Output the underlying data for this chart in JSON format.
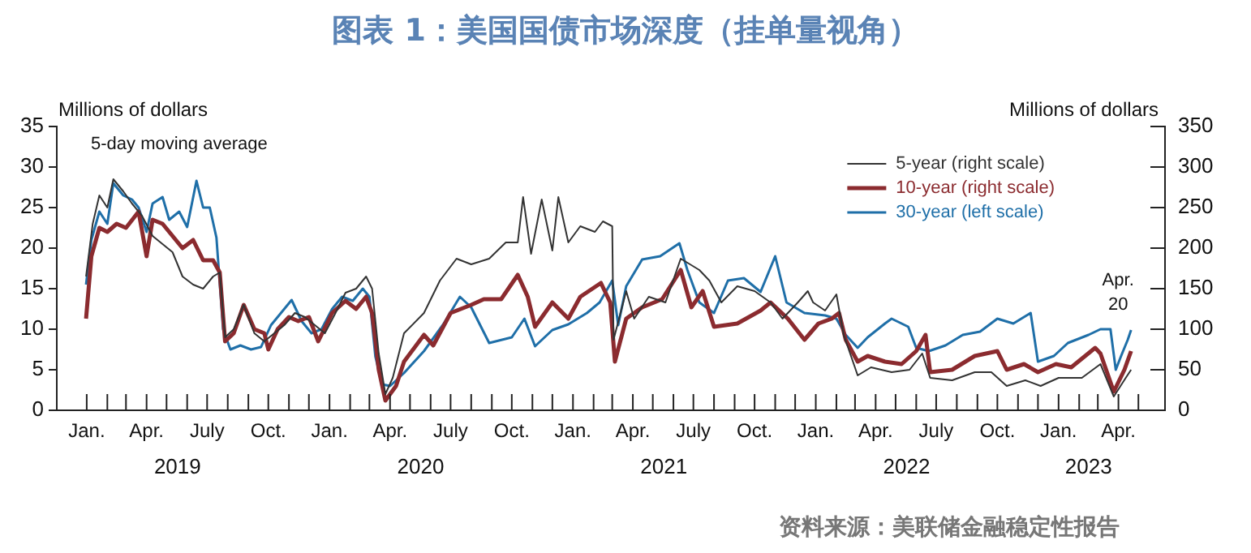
{
  "chart_data": {
    "type": "line",
    "title": "图表 1：美国国债市场深度（挂单量视角）",
    "ylabel": "Millions of dollars",
    "y2label": "Millions of dollars",
    "annotations": [
      "5-day moving average",
      "2019",
      "2020",
      "2021",
      "2022",
      "2023",
      {
        "text": "Apr. 20",
        "x": "2023-04-20",
        "y": 9.9
      },
      "资料来源：美联储金融稳定性报告"
    ],
    "xlim": [
      "2018-11-17",
      "2023-06-10"
    ],
    "xticks": [
      {
        "value": "2019-01-01",
        "label": "Jan."
      },
      {
        "value": "2019-02-01",
        "label": null
      },
      {
        "value": "2019-03-01",
        "label": null
      },
      {
        "value": "2019-04-01",
        "label": "Apr."
      },
      {
        "value": "2019-05-01",
        "label": null
      },
      {
        "value": "2019-06-01",
        "label": null
      },
      {
        "value": "2019-07-01",
        "label": "July"
      },
      {
        "value": "2019-08-01",
        "label": null
      },
      {
        "value": "2019-09-01",
        "label": null
      },
      {
        "value": "2019-10-01",
        "label": "Oct."
      },
      {
        "value": "2019-11-01",
        "label": null
      },
      {
        "value": "2019-12-01",
        "label": null
      },
      {
        "value": "2020-01-01",
        "label": "Jan."
      },
      {
        "value": "2020-02-01",
        "label": null
      },
      {
        "value": "2020-03-01",
        "label": null
      },
      {
        "value": "2020-04-01",
        "label": "Apr."
      },
      {
        "value": "2020-05-01",
        "label": null
      },
      {
        "value": "2020-06-01",
        "label": null
      },
      {
        "value": "2020-07-01",
        "label": "July"
      },
      {
        "value": "2020-08-01",
        "label": null
      },
      {
        "value": "2020-09-01",
        "label": null
      },
      {
        "value": "2020-10-01",
        "label": "Oct."
      },
      {
        "value": "2020-11-01",
        "label": null
      },
      {
        "value": "2020-12-01",
        "label": null
      },
      {
        "value": "2021-01-01",
        "label": "Jan."
      },
      {
        "value": "2021-02-01",
        "label": null
      },
      {
        "value": "2021-03-01",
        "label": null
      },
      {
        "value": "2021-04-01",
        "label": "Apr."
      },
      {
        "value": "2021-05-01",
        "label": null
      },
      {
        "value": "2021-06-01",
        "label": null
      },
      {
        "value": "2021-07-01",
        "label": "July"
      },
      {
        "value": "2021-08-01",
        "label": null
      },
      {
        "value": "2021-09-01",
        "label": null
      },
      {
        "value": "2021-10-01",
        "label": "Oct."
      },
      {
        "value": "2021-11-01",
        "label": null
      },
      {
        "value": "2021-12-01",
        "label": null
      },
      {
        "value": "2022-01-01",
        "label": "Jan."
      },
      {
        "value": "2022-02-01",
        "label": null
      },
      {
        "value": "2022-03-01",
        "label": null
      },
      {
        "value": "2022-04-01",
        "label": "Apr."
      },
      {
        "value": "2022-05-01",
        "label": null
      },
      {
        "value": "2022-06-01",
        "label": null
      },
      {
        "value": "2022-07-01",
        "label": "July"
      },
      {
        "value": "2022-08-01",
        "label": null
      },
      {
        "value": "2022-09-01",
        "label": null
      },
      {
        "value": "2022-10-01",
        "label": "Oct."
      },
      {
        "value": "2022-11-01",
        "label": null
      },
      {
        "value": "2022-12-01",
        "label": null
      },
      {
        "value": "2023-01-01",
        "label": "Jan."
      },
      {
        "value": "2023-02-01",
        "label": null
      },
      {
        "value": "2023-03-01",
        "label": null
      },
      {
        "value": "2023-04-01",
        "label": "Apr."
      },
      {
        "value": "2023-05-01",
        "label": null
      }
    ],
    "ylim": [
      0,
      35
    ],
    "yticks": [
      0,
      5,
      10,
      15,
      20,
      25,
      30,
      35
    ],
    "y2lim": [
      0,
      350
    ],
    "y2ticks": [
      0,
      50,
      100,
      150,
      200,
      250,
      300,
      350
    ],
    "legend": "top right",
    "series": [
      {
        "name": "5-year (right scale)",
        "color": "#333333",
        "axis": "y2",
        "x": [
          "2018-12-31",
          "2019-01-10",
          "2019-01-20",
          "2019-02-01",
          "2019-02-10",
          "2019-02-25",
          "2019-03-10",
          "2019-03-25",
          "2019-04-10",
          "2019-04-25",
          "2019-05-10",
          "2019-05-25",
          "2019-06-10",
          "2019-06-25",
          "2019-07-10",
          "2019-07-20",
          "2019-07-28",
          "2019-08-10",
          "2019-08-25",
          "2019-09-10",
          "2019-09-25",
          "2019-10-10",
          "2019-10-25",
          "2019-11-10",
          "2019-11-25",
          "2019-12-10",
          "2019-12-25",
          "2020-01-10",
          "2020-01-25",
          "2020-02-10",
          "2020-02-25",
          "2020-03-05",
          "2020-03-15",
          "2020-03-25",
          "2020-04-05",
          "2020-04-22",
          "2020-05-22",
          "2020-06-15",
          "2020-07-10",
          "2020-08-01",
          "2020-08-28",
          "2020-09-22",
          "2020-10-10",
          "2020-10-18",
          "2020-10-30",
          "2020-11-15",
          "2020-12-01",
          "2020-12-10",
          "2020-12-25",
          "2021-01-12",
          "2021-02-03",
          "2021-02-15",
          "2021-03-01",
          "2021-03-03",
          "2021-03-22",
          "2021-04-03",
          "2021-04-25",
          "2021-05-20",
          "2021-06-12",
          "2021-07-10",
          "2021-07-25",
          "2021-08-12",
          "2021-09-05",
          "2021-10-01",
          "2021-10-25",
          "2021-11-12",
          "2021-12-05",
          "2021-12-20",
          "2021-12-28",
          "2022-01-15",
          "2022-02-01",
          "2022-02-12",
          "2022-03-05",
          "2022-03-25",
          "2022-04-25",
          "2022-05-22",
          "2022-06-10",
          "2022-06-22",
          "2022-07-25",
          "2022-08-28",
          "2022-09-22",
          "2022-10-15",
          "2022-11-12",
          "2022-12-05",
          "2023-01-01",
          "2023-02-05",
          "2023-03-05",
          "2023-03-25",
          "2023-04-12",
          "2023-04-20"
        ],
        "values": [
          165,
          230,
          265,
          250,
          285,
          270,
          255,
          240,
          215,
          205,
          195,
          165,
          155,
          150,
          165,
          170,
          90,
          100,
          130,
          95,
          85,
          95,
          105,
          120,
          115,
          105,
          95,
          120,
          145,
          150,
          165,
          150,
          70,
          20,
          40,
          95,
          120,
          160,
          187,
          180,
          187,
          207,
          207,
          263,
          193,
          260,
          197,
          263,
          207,
          227,
          220,
          233,
          227,
          87,
          147,
          113,
          140,
          133,
          187,
          173,
          160,
          133,
          153,
          147,
          133,
          113,
          133,
          147,
          133,
          123,
          143,
          93,
          43,
          53,
          47,
          50,
          70,
          40,
          37,
          47,
          47,
          30,
          37,
          30,
          40,
          40,
          57,
          17,
          40,
          50
        ]
      },
      {
        "name": "10-year (right scale)",
        "color": "#8b2b2f",
        "axis": "y2",
        "x": [
          "2018-12-31",
          "2019-01-08",
          "2019-01-20",
          "2019-02-01",
          "2019-02-15",
          "2019-03-01",
          "2019-03-20",
          "2019-04-01",
          "2019-04-10",
          "2019-04-25",
          "2019-05-10",
          "2019-05-25",
          "2019-06-10",
          "2019-06-25",
          "2019-07-10",
          "2019-07-20",
          "2019-07-28",
          "2019-08-10",
          "2019-08-25",
          "2019-09-10",
          "2019-09-25",
          "2019-10-01",
          "2019-10-15",
          "2019-11-01",
          "2019-11-15",
          "2019-12-01",
          "2019-12-15",
          "2020-01-05",
          "2020-01-25",
          "2020-02-10",
          "2020-02-25",
          "2020-03-05",
          "2020-03-15",
          "2020-03-25",
          "2020-04-10",
          "2020-04-22",
          "2020-05-22",
          "2020-06-05",
          "2020-07-01",
          "2020-08-01",
          "2020-08-20",
          "2020-09-15",
          "2020-10-10",
          "2020-10-25",
          "2020-11-05",
          "2020-12-01",
          "2020-12-25",
          "2021-01-12",
          "2021-02-12",
          "2021-02-26",
          "2021-03-05",
          "2021-03-22",
          "2021-04-15",
          "2021-05-15",
          "2021-06-12",
          "2021-06-28",
          "2021-07-15",
          "2021-08-01",
          "2021-09-05",
          "2021-10-10",
          "2021-10-25",
          "2021-11-20",
          "2021-12-15",
          "2022-01-05",
          "2022-01-25",
          "2022-02-05",
          "2022-02-15",
          "2022-03-05",
          "2022-03-20",
          "2022-04-15",
          "2022-05-10",
          "2022-06-01",
          "2022-06-15",
          "2022-06-22",
          "2022-07-25",
          "2022-08-28",
          "2022-10-01",
          "2022-10-15",
          "2022-11-10",
          "2022-12-01",
          "2022-12-28",
          "2023-01-20",
          "2023-02-25",
          "2023-03-05",
          "2023-03-25",
          "2023-04-10",
          "2023-04-20"
        ],
        "values": [
          113,
          190,
          225,
          220,
          230,
          225,
          245,
          190,
          235,
          230,
          215,
          200,
          210,
          185,
          185,
          170,
          85,
          95,
          130,
          100,
          95,
          75,
          100,
          115,
          110,
          115,
          85,
          120,
          135,
          125,
          140,
          120,
          50,
          12,
          30,
          60,
          93,
          80,
          120,
          130,
          137,
          137,
          167,
          140,
          103,
          133,
          113,
          140,
          157,
          133,
          60,
          113,
          127,
          137,
          173,
          127,
          147,
          103,
          107,
          123,
          133,
          113,
          87,
          107,
          113,
          120,
          87,
          60,
          67,
          60,
          57,
          73,
          93,
          47,
          50,
          67,
          73,
          50,
          57,
          47,
          57,
          53,
          77,
          70,
          23,
          50,
          73
        ]
      },
      {
        "name": "30-year (left scale)",
        "color": "#1f6fa8",
        "x": [
          "2018-12-31",
          "2019-01-08",
          "2019-01-20",
          "2019-02-01",
          "2019-02-10",
          "2019-02-25",
          "2019-03-10",
          "2019-03-20",
          "2019-04-01",
          "2019-04-10",
          "2019-04-25",
          "2019-05-05",
          "2019-05-20",
          "2019-06-01",
          "2019-06-15",
          "2019-06-25",
          "2019-07-05",
          "2019-07-15",
          "2019-07-25",
          "2019-08-05",
          "2019-08-20",
          "2019-09-05",
          "2019-09-20",
          "2019-10-05",
          "2019-10-20",
          "2019-11-05",
          "2019-11-20",
          "2019-12-05",
          "2019-12-20",
          "2020-01-05",
          "2020-01-20",
          "2020-02-05",
          "2020-02-20",
          "2020-03-01",
          "2020-03-10",
          "2020-03-20",
          "2020-04-01",
          "2020-04-22",
          "2020-05-22",
          "2020-06-20",
          "2020-07-15",
          "2020-08-01",
          "2020-08-28",
          "2020-10-01",
          "2020-10-20",
          "2020-11-05",
          "2020-12-01",
          "2020-12-25",
          "2021-01-22",
          "2021-02-10",
          "2021-03-01",
          "2021-03-10",
          "2021-03-22",
          "2021-04-15",
          "2021-05-12",
          "2021-06-10",
          "2021-06-22",
          "2021-07-10",
          "2021-08-01",
          "2021-08-22",
          "2021-09-15",
          "2021-10-10",
          "2021-11-01",
          "2021-11-18",
          "2021-12-15",
          "2022-01-15",
          "2022-02-01",
          "2022-02-15",
          "2022-03-05",
          "2022-03-20",
          "2022-04-15",
          "2022-04-25",
          "2022-05-20",
          "2022-06-01",
          "2022-06-20",
          "2022-07-15",
          "2022-08-10",
          "2022-09-05",
          "2022-10-01",
          "2022-10-25",
          "2022-11-20",
          "2022-12-01",
          "2022-12-25",
          "2023-01-15",
          "2023-02-15",
          "2023-03-05",
          "2023-03-20",
          "2023-03-28",
          "2023-04-05",
          "2023-04-15",
          "2023-04-20"
        ],
        "values": [
          15.5,
          21,
          24.5,
          23,
          28,
          26.5,
          26,
          25,
          22,
          25.5,
          26.3,
          23.5,
          24.5,
          22.6,
          28.3,
          25,
          25,
          21.3,
          10,
          7.5,
          8,
          7.5,
          7.8,
          10.5,
          12,
          13.6,
          11,
          9.5,
          10,
          12.5,
          14,
          13.5,
          15,
          14,
          6.6,
          3.2,
          3,
          4.6,
          7.3,
          10.6,
          14,
          12.7,
          8.3,
          9,
          11.3,
          7.9,
          9.9,
          10.6,
          12,
          13.3,
          16,
          10.5,
          15.3,
          18.6,
          19,
          20.6,
          17.3,
          13.3,
          12,
          16,
          16.3,
          14.6,
          19,
          13.3,
          12,
          11.7,
          11.3,
          9.3,
          7.7,
          9,
          10.7,
          11.3,
          10.3,
          7.7,
          7.3,
          8,
          9.3,
          9.7,
          11.3,
          10.7,
          12,
          6,
          6.7,
          8.3,
          9.3,
          10,
          10,
          5,
          6.7,
          8.7,
          9.9
        ]
      }
    ]
  }
}
